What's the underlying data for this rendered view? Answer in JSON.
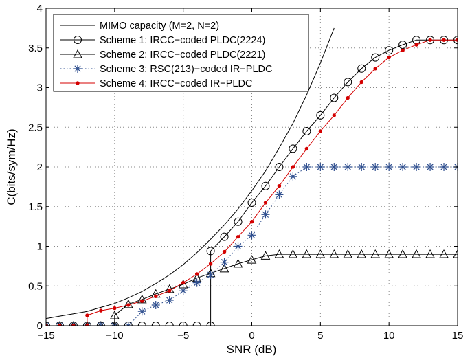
{
  "chart_data": {
    "type": "line",
    "title": "",
    "xlabel": "SNR (dB)",
    "ylabel": "C(bits/sym/Hz)",
    "xlim": [
      -15,
      15
    ],
    "ylim": [
      0,
      4
    ],
    "xticks": [
      -15,
      -10,
      -5,
      0,
      5,
      10,
      15
    ],
    "yticks": [
      0,
      0.5,
      1,
      1.5,
      2,
      2.5,
      3,
      3.5,
      4
    ],
    "xtick_labels": [
      "−15",
      "−10",
      "−5",
      "0",
      "5",
      "10",
      "15"
    ],
    "ytick_labels": [
      "0",
      "0.5",
      "1",
      "1.5",
      "2",
      "2.5",
      "3",
      "3.5",
      "4"
    ],
    "grid": true,
    "legend_position": "top-left",
    "series": [
      {
        "name": "MIMO capacity (M=2, N=2)",
        "color": "#000000",
        "line_style": "solid",
        "marker": "none",
        "x": [
          -15,
          -14,
          -13,
          -12,
          -11,
          -10,
          -9,
          -8,
          -7,
          -6,
          -5,
          -4,
          -3,
          -2,
          -1,
          0,
          1,
          2,
          3,
          4,
          5,
          6
        ],
        "y": [
          0.09,
          0.12,
          0.15,
          0.18,
          0.23,
          0.28,
          0.35,
          0.43,
          0.53,
          0.64,
          0.77,
          0.92,
          1.09,
          1.27,
          1.47,
          1.7,
          1.95,
          2.24,
          2.55,
          2.91,
          3.31,
          3.75
        ]
      },
      {
        "name": "Scheme 1: IRCC−coded PLDC(2224)",
        "color": "#000000",
        "line_style": "solid",
        "marker": "circle",
        "x": [
          -15,
          -14,
          -13,
          -12,
          -11,
          -10,
          -9,
          -8,
          -7,
          -6,
          -5,
          -4,
          -3,
          -3,
          -2,
          -1,
          0,
          1,
          2,
          3,
          4,
          5,
          6,
          7,
          8,
          9,
          10,
          11,
          12,
          13,
          14,
          15
        ],
        "y": [
          0,
          0,
          0,
          0,
          0,
          0,
          0,
          0,
          0,
          0,
          0,
          0,
          0,
          0.94,
          1.12,
          1.31,
          1.55,
          1.76,
          2.0,
          2.23,
          2.45,
          2.65,
          2.87,
          3.07,
          3.24,
          3.38,
          3.47,
          3.54,
          3.6,
          3.6,
          3.6,
          3.6
        ]
      },
      {
        "name": "Scheme 2: IRCC−coded PLDC(2221)",
        "color": "#000000",
        "line_style": "solid",
        "marker": "triangle",
        "x": [
          -15,
          -14,
          -13,
          -12,
          -11,
          -10,
          -10,
          -9,
          -8,
          -7,
          -6,
          -5,
          -4,
          -3,
          -2,
          -1,
          0,
          1,
          2,
          3,
          4,
          5,
          6,
          7,
          8,
          9,
          10,
          11,
          12,
          13,
          14,
          15
        ],
        "y": [
          0,
          0,
          0,
          0,
          0,
          0,
          0.13,
          0.27,
          0.33,
          0.4,
          0.46,
          0.52,
          0.6,
          0.66,
          0.72,
          0.78,
          0.83,
          0.88,
          0.9,
          0.9,
          0.9,
          0.9,
          0.9,
          0.9,
          0.9,
          0.9,
          0.9,
          0.9,
          0.9,
          0.9,
          0.9,
          0.9
        ]
      },
      {
        "name": "Scheme 3: RSC(213)−coded IR−PLDC",
        "color": "#2f4f8f",
        "line_style": "dotted",
        "marker": "star",
        "x": [
          -15,
          -14,
          -13,
          -12,
          -11,
          -10,
          -9,
          -8,
          -7,
          -6,
          -5,
          -4,
          -3,
          -2,
          -1,
          0,
          1,
          2,
          3,
          4,
          5,
          6,
          7,
          8,
          9,
          10,
          11,
          12,
          13,
          14,
          15
        ],
        "y": [
          0,
          0,
          0,
          0,
          0,
          0,
          0,
          0.18,
          0.26,
          0.32,
          0.44,
          0.54,
          0.64,
          0.8,
          1.0,
          1.14,
          1.4,
          1.65,
          1.88,
          2.0,
          2.0,
          2.0,
          2.0,
          2.0,
          2.0,
          2.0,
          2.0,
          2.0,
          2.0,
          2.0,
          2.0
        ]
      },
      {
        "name": "Scheme 4: IRCC−coded IR−PLDC",
        "color": "#d40000",
        "line_style": "solid",
        "marker": "dot",
        "x": [
          -15,
          -14,
          -13,
          -12,
          -12,
          -11,
          -10,
          -9,
          -8,
          -7,
          -6,
          -5,
          -4,
          -3,
          -2,
          -1,
          0,
          1,
          2,
          3,
          4,
          5,
          6,
          7,
          8,
          9,
          10,
          11,
          12,
          13,
          14,
          15
        ],
        "y": [
          0,
          0,
          0,
          0,
          0.13,
          0.19,
          0.22,
          0.26,
          0.31,
          0.37,
          0.44,
          0.54,
          0.65,
          0.78,
          0.93,
          1.12,
          1.31,
          1.55,
          1.76,
          2.0,
          2.23,
          2.45,
          2.65,
          2.87,
          3.07,
          3.24,
          3.38,
          3.47,
          3.54,
          3.6,
          3.6,
          3.6
        ]
      }
    ]
  }
}
